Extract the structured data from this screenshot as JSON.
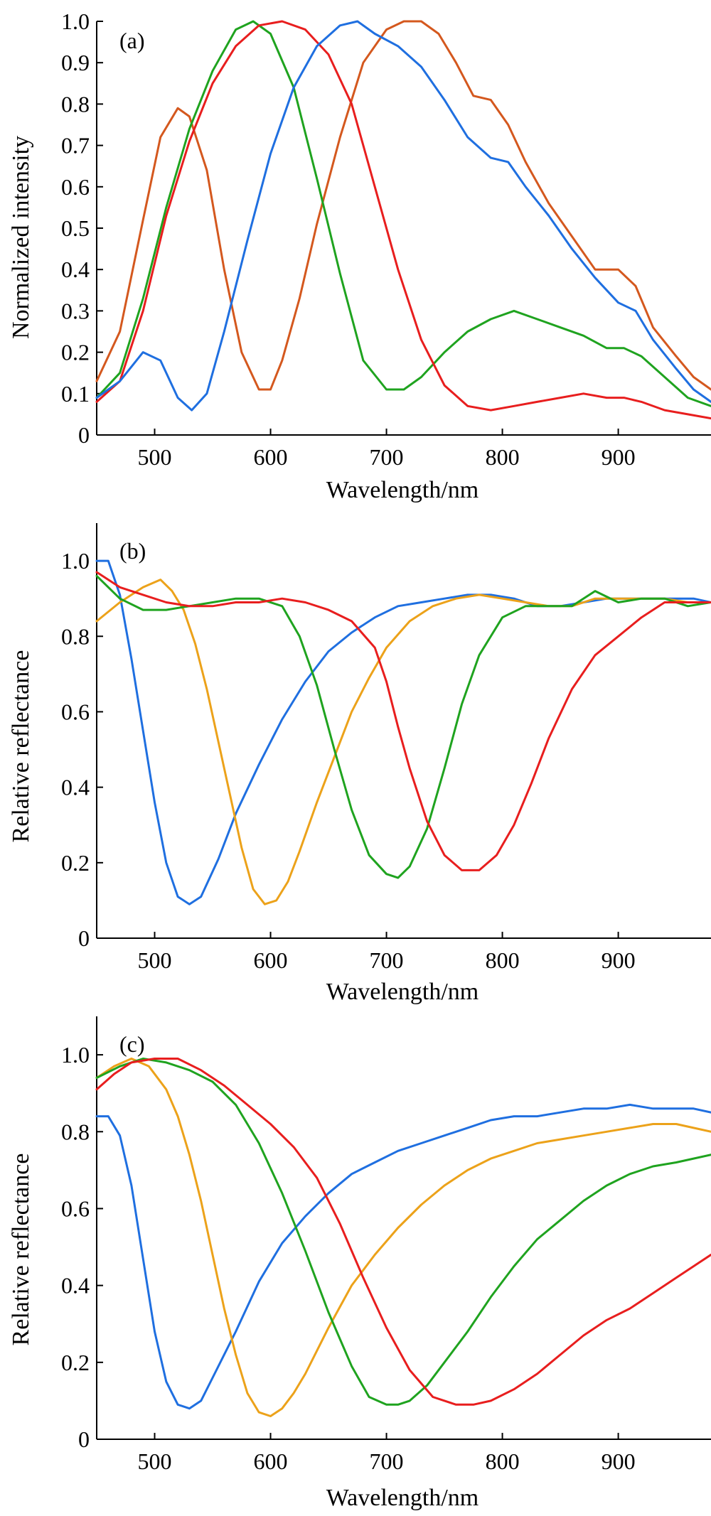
{
  "figure": {
    "panels": [
      "(a)",
      "(b)",
      "(c)"
    ]
  },
  "chart_data": [
    {
      "type": "line",
      "panel_label": "(a)",
      "xlabel": "Wavelength/nm",
      "ylabel": "Normalized intensity",
      "xlim": [
        450,
        980
      ],
      "ylim": [
        0,
        1.0
      ],
      "x_ticks": [
        500,
        600,
        700,
        800,
        900
      ],
      "x_tick_labels": [
        "500",
        "600",
        "700",
        "800",
        "900"
      ],
      "y_ticks": [
        0,
        0.1,
        0.2,
        0.3,
        0.4,
        0.5,
        0.6,
        0.7,
        0.8,
        0.9,
        1.0
      ],
      "y_tick_labels": [
        "0",
        "0.1",
        "0.2",
        "0.3",
        "0.4",
        "0.5",
        "0.6",
        "0.7",
        "0.8",
        "0.9",
        "1.0"
      ],
      "grid": false,
      "series": [
        {
          "color": "#d4581e",
          "x": [
            450,
            470,
            490,
            505,
            520,
            530,
            545,
            560,
            575,
            590,
            600,
            610,
            625,
            640,
            660,
            680,
            700,
            715,
            730,
            745,
            760,
            775,
            790,
            805,
            820,
            840,
            860,
            880,
            900,
            915,
            930,
            950,
            965,
            980
          ],
          "y": [
            0.13,
            0.25,
            0.52,
            0.72,
            0.79,
            0.77,
            0.64,
            0.4,
            0.2,
            0.11,
            0.11,
            0.18,
            0.33,
            0.51,
            0.72,
            0.9,
            0.98,
            1.0,
            1.0,
            0.97,
            0.9,
            0.82,
            0.81,
            0.75,
            0.66,
            0.56,
            0.48,
            0.4,
            0.4,
            0.36,
            0.26,
            0.19,
            0.14,
            0.11
          ]
        },
        {
          "color": "#1fa31f",
          "x": [
            450,
            470,
            490,
            510,
            530,
            550,
            570,
            585,
            600,
            620,
            640,
            660,
            680,
            700,
            715,
            730,
            750,
            770,
            790,
            810,
            830,
            850,
            870,
            890,
            905,
            920,
            940,
            960,
            980
          ],
          "y": [
            0.09,
            0.15,
            0.33,
            0.55,
            0.74,
            0.88,
            0.98,
            1.0,
            0.97,
            0.84,
            0.62,
            0.39,
            0.18,
            0.11,
            0.11,
            0.14,
            0.2,
            0.25,
            0.28,
            0.3,
            0.28,
            0.26,
            0.24,
            0.21,
            0.21,
            0.19,
            0.14,
            0.09,
            0.07
          ]
        },
        {
          "color": "#e81e1e",
          "x": [
            450,
            470,
            490,
            510,
            530,
            550,
            570,
            590,
            610,
            630,
            650,
            670,
            690,
            710,
            730,
            750,
            770,
            790,
            810,
            830,
            850,
            870,
            890,
            905,
            920,
            940,
            960,
            980
          ],
          "y": [
            0.08,
            0.13,
            0.3,
            0.53,
            0.71,
            0.85,
            0.94,
            0.99,
            1.0,
            0.98,
            0.92,
            0.8,
            0.6,
            0.4,
            0.23,
            0.12,
            0.07,
            0.06,
            0.07,
            0.08,
            0.09,
            0.1,
            0.09,
            0.09,
            0.08,
            0.06,
            0.05,
            0.04
          ]
        },
        {
          "color": "#1f6fe0",
          "x": [
            450,
            470,
            490,
            505,
            520,
            532,
            545,
            560,
            580,
            600,
            620,
            640,
            660,
            675,
            690,
            710,
            730,
            750,
            770,
            790,
            805,
            820,
            840,
            860,
            880,
            900,
            915,
            930,
            950,
            965,
            980
          ],
          "y": [
            0.09,
            0.13,
            0.2,
            0.18,
            0.09,
            0.06,
            0.1,
            0.25,
            0.47,
            0.68,
            0.84,
            0.94,
            0.99,
            1.0,
            0.97,
            0.94,
            0.89,
            0.81,
            0.72,
            0.67,
            0.66,
            0.6,
            0.53,
            0.45,
            0.38,
            0.32,
            0.3,
            0.23,
            0.16,
            0.11,
            0.08
          ]
        }
      ]
    },
    {
      "type": "line",
      "panel_label": "(b)",
      "xlabel": "Wavelength/nm",
      "ylabel": "Relative reflectance",
      "xlim": [
        450,
        980
      ],
      "ylim": [
        0,
        1.1
      ],
      "x_ticks": [
        500,
        600,
        700,
        800,
        900
      ],
      "x_tick_labels": [
        "500",
        "600",
        "700",
        "800",
        "900"
      ],
      "y_ticks": [
        0,
        0.2,
        0.4,
        0.6,
        0.8,
        1.0
      ],
      "y_tick_labels": [
        "0",
        "0.2",
        "0.4",
        "0.6",
        "0.8",
        "1.0"
      ],
      "grid": false,
      "series": [
        {
          "color": "#1f6fe0",
          "x": [
            450,
            460,
            470,
            480,
            490,
            500,
            510,
            520,
            530,
            540,
            555,
            570,
            590,
            610,
            630,
            650,
            670,
            690,
            710,
            730,
            750,
            770,
            790,
            810,
            830,
            850,
            870,
            890,
            910,
            930,
            950,
            965,
            980
          ],
          "y": [
            1.0,
            1.0,
            0.91,
            0.74,
            0.55,
            0.36,
            0.2,
            0.11,
            0.09,
            0.11,
            0.21,
            0.33,
            0.46,
            0.58,
            0.68,
            0.76,
            0.81,
            0.85,
            0.88,
            0.89,
            0.9,
            0.91,
            0.91,
            0.9,
            0.88,
            0.88,
            0.89,
            0.9,
            0.9,
            0.9,
            0.9,
            0.9,
            0.89
          ]
        },
        {
          "color": "#eca21a",
          "x": [
            450,
            470,
            490,
            505,
            515,
            525,
            535,
            545,
            555,
            565,
            575,
            585,
            595,
            605,
            615,
            625,
            640,
            655,
            670,
            685,
            700,
            720,
            740,
            760,
            780,
            800,
            820,
            840,
            860,
            880,
            900,
            920,
            940,
            960,
            980
          ],
          "y": [
            0.84,
            0.89,
            0.93,
            0.95,
            0.92,
            0.87,
            0.78,
            0.66,
            0.52,
            0.38,
            0.24,
            0.13,
            0.09,
            0.1,
            0.15,
            0.23,
            0.36,
            0.48,
            0.6,
            0.69,
            0.77,
            0.84,
            0.88,
            0.9,
            0.91,
            0.9,
            0.89,
            0.88,
            0.88,
            0.9,
            0.9,
            0.9,
            0.9,
            0.89,
            0.89
          ]
        },
        {
          "color": "#1fa31f",
          "x": [
            450,
            470,
            490,
            510,
            530,
            550,
            570,
            590,
            610,
            625,
            640,
            655,
            670,
            685,
            700,
            710,
            720,
            735,
            750,
            765,
            780,
            800,
            820,
            840,
            860,
            880,
            900,
            920,
            940,
            960,
            980
          ],
          "y": [
            0.96,
            0.9,
            0.87,
            0.87,
            0.88,
            0.89,
            0.9,
            0.9,
            0.88,
            0.8,
            0.67,
            0.5,
            0.34,
            0.22,
            0.17,
            0.16,
            0.19,
            0.29,
            0.45,
            0.62,
            0.75,
            0.85,
            0.88,
            0.88,
            0.88,
            0.92,
            0.89,
            0.9,
            0.9,
            0.88,
            0.89
          ]
        },
        {
          "color": "#e81e1e",
          "x": [
            450,
            470,
            490,
            510,
            530,
            550,
            570,
            590,
            610,
            630,
            650,
            670,
            690,
            700,
            710,
            720,
            735,
            750,
            765,
            780,
            795,
            810,
            825,
            840,
            860,
            880,
            900,
            920,
            940,
            960,
            980
          ],
          "y": [
            0.97,
            0.93,
            0.91,
            0.89,
            0.88,
            0.88,
            0.89,
            0.89,
            0.9,
            0.89,
            0.87,
            0.84,
            0.77,
            0.68,
            0.56,
            0.45,
            0.31,
            0.22,
            0.18,
            0.18,
            0.22,
            0.3,
            0.41,
            0.53,
            0.66,
            0.75,
            0.8,
            0.85,
            0.89,
            0.89,
            0.89
          ]
        }
      ]
    },
    {
      "type": "line",
      "panel_label": "(c)",
      "xlabel": "Wavelength/nm",
      "ylabel": "Relative reflectance",
      "xlim": [
        450,
        980
      ],
      "ylim": [
        0,
        1.1
      ],
      "x_ticks": [
        500,
        600,
        700,
        800,
        900
      ],
      "x_tick_labels": [
        "500",
        "600",
        "700",
        "800",
        "900"
      ],
      "y_ticks": [
        0,
        0.2,
        0.4,
        0.6,
        0.8,
        1.0
      ],
      "y_tick_labels": [
        "0",
        "0.2",
        "0.4",
        "0.6",
        "0.8",
        "1.0"
      ],
      "grid": false,
      "series": [
        {
          "color": "#1f6fe0",
          "x": [
            450,
            460,
            470,
            480,
            490,
            500,
            510,
            520,
            530,
            540,
            550,
            570,
            590,
            610,
            630,
            650,
            670,
            690,
            710,
            730,
            750,
            770,
            790,
            810,
            830,
            850,
            870,
            890,
            910,
            930,
            950,
            965,
            980
          ],
          "y": [
            0.84,
            0.84,
            0.79,
            0.66,
            0.47,
            0.28,
            0.15,
            0.09,
            0.08,
            0.1,
            0.16,
            0.28,
            0.41,
            0.51,
            0.58,
            0.64,
            0.69,
            0.72,
            0.75,
            0.77,
            0.79,
            0.81,
            0.83,
            0.84,
            0.84,
            0.85,
            0.86,
            0.86,
            0.87,
            0.86,
            0.86,
            0.86,
            0.85
          ]
        },
        {
          "color": "#eca21a",
          "x": [
            450,
            465,
            480,
            495,
            510,
            520,
            530,
            540,
            550,
            560,
            570,
            580,
            590,
            600,
            610,
            620,
            630,
            650,
            670,
            690,
            710,
            730,
            750,
            770,
            790,
            810,
            830,
            850,
            870,
            890,
            910,
            930,
            950,
            965,
            980
          ],
          "y": [
            0.94,
            0.97,
            0.99,
            0.97,
            0.91,
            0.84,
            0.74,
            0.62,
            0.48,
            0.34,
            0.22,
            0.12,
            0.07,
            0.06,
            0.08,
            0.12,
            0.17,
            0.29,
            0.4,
            0.48,
            0.55,
            0.61,
            0.66,
            0.7,
            0.73,
            0.75,
            0.77,
            0.78,
            0.79,
            0.8,
            0.81,
            0.82,
            0.82,
            0.81,
            0.8
          ]
        },
        {
          "color": "#1fa31f",
          "x": [
            450,
            470,
            490,
            510,
            530,
            550,
            570,
            590,
            610,
            630,
            650,
            670,
            685,
            700,
            710,
            720,
            735,
            750,
            770,
            790,
            810,
            830,
            850,
            870,
            890,
            910,
            930,
            950,
            965,
            980
          ],
          "y": [
            0.94,
            0.97,
            0.99,
            0.98,
            0.96,
            0.93,
            0.87,
            0.77,
            0.64,
            0.49,
            0.33,
            0.19,
            0.11,
            0.09,
            0.09,
            0.1,
            0.14,
            0.2,
            0.28,
            0.37,
            0.45,
            0.52,
            0.57,
            0.62,
            0.66,
            0.69,
            0.71,
            0.72,
            0.73,
            0.74
          ]
        },
        {
          "color": "#e81e1e",
          "x": [
            450,
            465,
            480,
            500,
            520,
            540,
            560,
            580,
            600,
            620,
            640,
            660,
            680,
            700,
            720,
            740,
            760,
            775,
            790,
            810,
            830,
            850,
            870,
            890,
            910,
            930,
            950,
            965,
            980
          ],
          "y": [
            0.91,
            0.95,
            0.98,
            0.99,
            0.99,
            0.96,
            0.92,
            0.87,
            0.82,
            0.76,
            0.68,
            0.56,
            0.42,
            0.29,
            0.18,
            0.11,
            0.09,
            0.09,
            0.1,
            0.13,
            0.17,
            0.22,
            0.27,
            0.31,
            0.34,
            0.38,
            0.42,
            0.45,
            0.48
          ]
        }
      ]
    }
  ]
}
